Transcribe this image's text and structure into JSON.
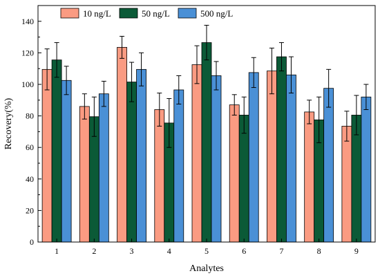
{
  "chart_data": {
    "type": "bar",
    "xlabel": "Analytes",
    "ylabel": "Recovery(%)",
    "ylim": [
      0,
      150
    ],
    "yticks": [
      0,
      20,
      40,
      60,
      80,
      100,
      120,
      140
    ],
    "categories": [
      "1",
      "2",
      "3",
      "4",
      "5",
      "6",
      "7",
      "8",
      "9"
    ],
    "legend_position": "top-left",
    "grid": false,
    "error_bars": true,
    "series": [
      {
        "name": "10 ng/L",
        "color": "#FA9B82",
        "values": [
          109.5,
          86,
          123.5,
          84,
          112.5,
          87,
          108.5,
          82.5,
          73.5
        ],
        "errors": [
          13,
          8,
          7,
          10.5,
          12,
          6.5,
          14.5,
          7.5,
          9.5
        ]
      },
      {
        "name": "50 ng/L",
        "color": "#0B5A37",
        "values": [
          115.5,
          79.5,
          101.5,
          75.5,
          126.5,
          80.5,
          117.5,
          77.5,
          80.5
        ],
        "errors": [
          11,
          12.5,
          12.5,
          15.5,
          11,
          11.5,
          9,
          14.5,
          12.5
        ]
      },
      {
        "name": "500 ng/L",
        "color": "#4A90D6",
        "values": [
          102.5,
          94,
          109.5,
          96.5,
          105.5,
          107.5,
          106,
          97.5,
          92
        ],
        "errors": [
          9,
          8,
          10.5,
          9,
          9,
          9.5,
          11.5,
          12,
          8
        ]
      }
    ]
  }
}
